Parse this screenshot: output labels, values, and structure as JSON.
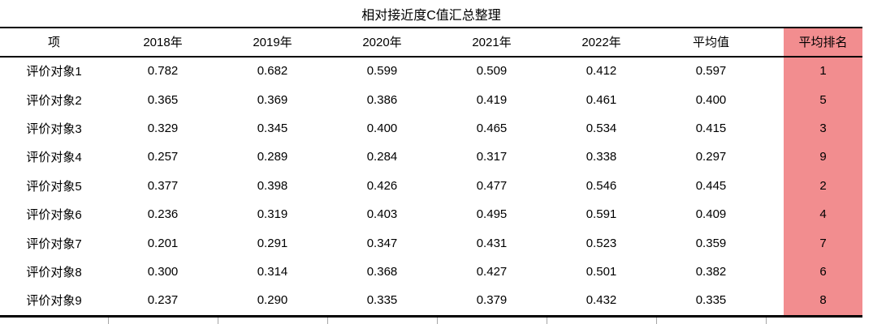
{
  "title": "相对接近度C值汇总整理",
  "chart_data": {
    "type": "table",
    "title": "相对接近度C值汇总整理",
    "columns": [
      "项",
      "2018年",
      "2019年",
      "2020年",
      "2021年",
      "2022年",
      "平均值",
      "平均排名"
    ],
    "rows": [
      [
        "评价对象1",
        "0.782",
        "0.682",
        "0.599",
        "0.509",
        "0.412",
        "0.597",
        "1"
      ],
      [
        "评价对象2",
        "0.365",
        "0.369",
        "0.386",
        "0.419",
        "0.461",
        "0.400",
        "5"
      ],
      [
        "评价对象3",
        "0.329",
        "0.345",
        "0.400",
        "0.465",
        "0.534",
        "0.415",
        "3"
      ],
      [
        "评价对象4",
        "0.257",
        "0.289",
        "0.284",
        "0.317",
        "0.338",
        "0.297",
        "9"
      ],
      [
        "评价对象5",
        "0.377",
        "0.398",
        "0.426",
        "0.477",
        "0.546",
        "0.445",
        "2"
      ],
      [
        "评价对象6",
        "0.236",
        "0.319",
        "0.403",
        "0.495",
        "0.591",
        "0.409",
        "4"
      ],
      [
        "评价对象7",
        "0.201",
        "0.291",
        "0.347",
        "0.431",
        "0.523",
        "0.359",
        "7"
      ],
      [
        "评价对象8",
        "0.300",
        "0.314",
        "0.368",
        "0.427",
        "0.501",
        "0.382",
        "6"
      ],
      [
        "评价对象9",
        "0.237",
        "0.290",
        "0.335",
        "0.379",
        "0.432",
        "0.335",
        "8"
      ]
    ],
    "highlight_column": "平均排名",
    "layout_hints": {
      "highlighted_last_column": true,
      "gridlines_visible_below_bottom_border": true
    }
  },
  "colors": {
    "rank_highlight": "#f28d8f",
    "border": "#000000",
    "grid_tick": "#a6a6a6",
    "text": "#000000",
    "background": "#ffffff"
  }
}
